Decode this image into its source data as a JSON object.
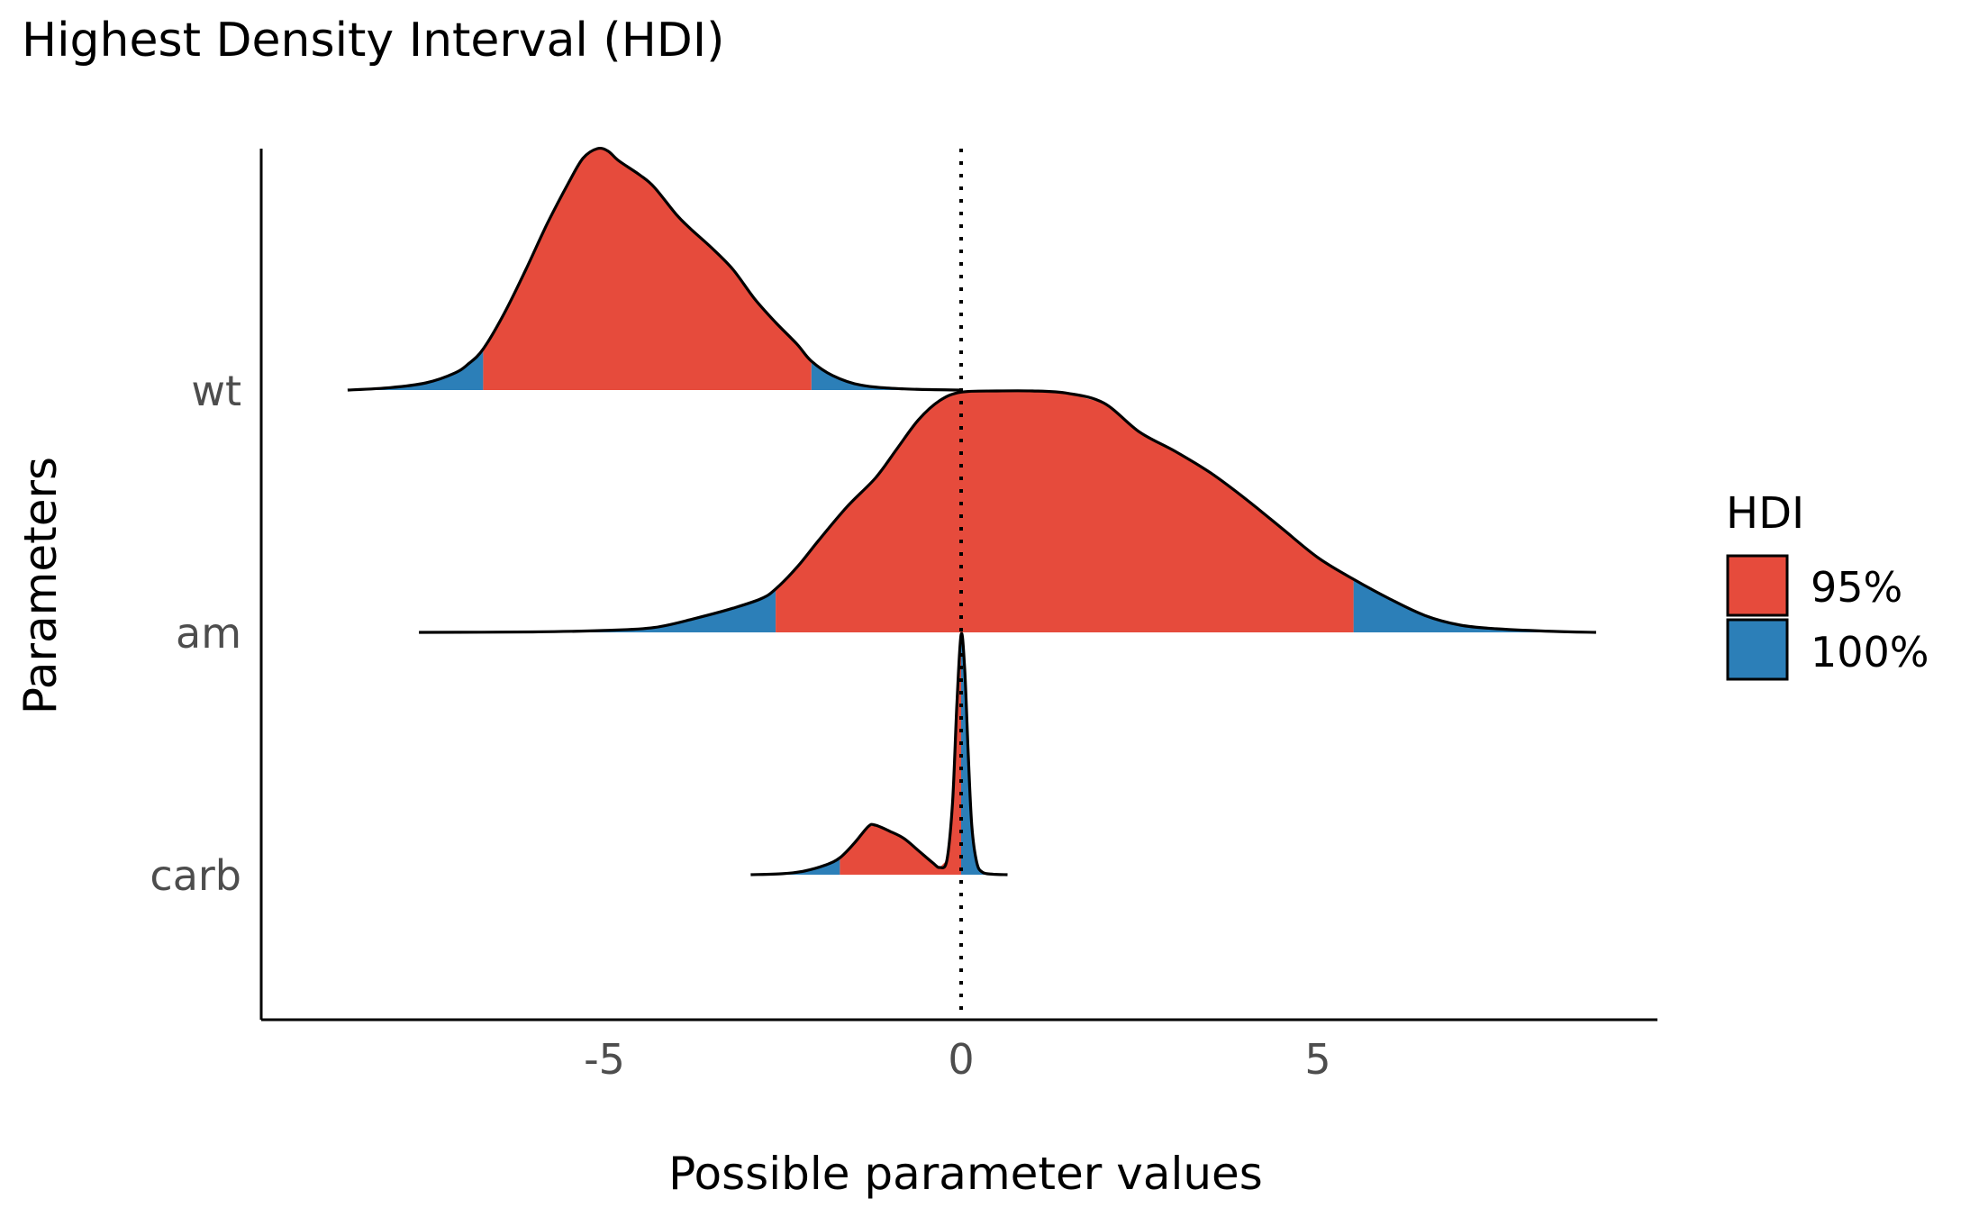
{
  "chart_data": {
    "type": "ridgeline-density",
    "title": "Highest Density Interval (HDI)",
    "xlabel": "Possible parameter values",
    "ylabel": "Parameters",
    "xlim": [
      -9.8,
      9.8
    ],
    "x_ticks": [
      -5,
      0,
      5
    ],
    "x_tick_labels": [
      "-5",
      "0",
      "5"
    ],
    "reference_line_x": 0,
    "grid": false,
    "legend": {
      "title": "HDI",
      "placement": "right",
      "entries": [
        {
          "label": "95%",
          "color": "#E64B3C"
        },
        {
          "label": "100%",
          "color": "#2C7FB8"
        }
      ]
    },
    "categories": [
      "wt",
      "am",
      "carb"
    ],
    "series": [
      {
        "name": "wt",
        "range": [
          -8.6,
          0.0
        ],
        "hdi95": [
          -6.7,
          -2.1
        ],
        "density": [
          [
            -8.6,
            0.0
          ],
          [
            -8.0,
            0.01
          ],
          [
            -7.5,
            0.03
          ],
          [
            -7.1,
            0.07
          ],
          [
            -6.9,
            0.11
          ],
          [
            -6.7,
            0.17
          ],
          [
            -6.4,
            0.32
          ],
          [
            -6.1,
            0.5
          ],
          [
            -5.8,
            0.69
          ],
          [
            -5.5,
            0.86
          ],
          [
            -5.3,
            0.96
          ],
          [
            -5.1,
            1.0
          ],
          [
            -4.95,
            0.99
          ],
          [
            -4.8,
            0.95
          ],
          [
            -4.5,
            0.89
          ],
          [
            -4.3,
            0.84
          ],
          [
            -4.0,
            0.73
          ],
          [
            -3.8,
            0.67
          ],
          [
            -3.5,
            0.59
          ],
          [
            -3.2,
            0.5
          ],
          [
            -2.9,
            0.38
          ],
          [
            -2.6,
            0.28
          ],
          [
            -2.3,
            0.19
          ],
          [
            -2.1,
            0.12
          ],
          [
            -1.8,
            0.06
          ],
          [
            -1.4,
            0.02
          ],
          [
            -0.8,
            0.005
          ],
          [
            0.0,
            0.0
          ]
        ]
      },
      {
        "name": "am",
        "range": [
          -7.6,
          8.9
        ],
        "hdi95": [
          -2.6,
          5.5
        ],
        "density": [
          [
            -7.6,
            0.0
          ],
          [
            -6.0,
            0.002
          ],
          [
            -5.0,
            0.008
          ],
          [
            -4.3,
            0.02
          ],
          [
            -3.7,
            0.06
          ],
          [
            -3.2,
            0.1
          ],
          [
            -2.8,
            0.14
          ],
          [
            -2.6,
            0.18
          ],
          [
            -2.3,
            0.27
          ],
          [
            -2.0,
            0.38
          ],
          [
            -1.6,
            0.52
          ],
          [
            -1.2,
            0.64
          ],
          [
            -0.9,
            0.76
          ],
          [
            -0.6,
            0.88
          ],
          [
            -0.3,
            0.96
          ],
          [
            0.0,
            0.995
          ],
          [
            0.5,
            1.0
          ],
          [
            1.0,
            1.0
          ],
          [
            1.5,
            0.99
          ],
          [
            2.0,
            0.95
          ],
          [
            2.5,
            0.83
          ],
          [
            3.0,
            0.75
          ],
          [
            3.5,
            0.66
          ],
          [
            4.0,
            0.55
          ],
          [
            4.5,
            0.43
          ],
          [
            5.0,
            0.31
          ],
          [
            5.5,
            0.22
          ],
          [
            6.0,
            0.14
          ],
          [
            6.5,
            0.07
          ],
          [
            7.0,
            0.03
          ],
          [
            7.5,
            0.015
          ],
          [
            8.3,
            0.004
          ],
          [
            8.9,
            0.0
          ]
        ]
      },
      {
        "name": "carb",
        "range": [
          -2.95,
          0.65
        ],
        "hdi95": [
          -1.7,
          0.0
        ],
        "density": [
          [
            -2.95,
            0.0
          ],
          [
            -2.5,
            0.004
          ],
          [
            -2.2,
            0.015
          ],
          [
            -1.9,
            0.04
          ],
          [
            -1.7,
            0.07
          ],
          [
            -1.5,
            0.13
          ],
          [
            -1.3,
            0.2
          ],
          [
            -1.2,
            0.205
          ],
          [
            -1.0,
            0.18
          ],
          [
            -0.8,
            0.15
          ],
          [
            -0.6,
            0.1
          ],
          [
            -0.4,
            0.05
          ],
          [
            -0.3,
            0.03
          ],
          [
            -0.2,
            0.06
          ],
          [
            -0.12,
            0.3
          ],
          [
            -0.06,
            0.7
          ],
          [
            0.0,
            0.995
          ],
          [
            0.05,
            0.85
          ],
          [
            0.1,
            0.5
          ],
          [
            0.15,
            0.2
          ],
          [
            0.22,
            0.05
          ],
          [
            0.3,
            0.01
          ],
          [
            0.45,
            0.002
          ],
          [
            0.65,
            0.0
          ]
        ]
      }
    ]
  }
}
